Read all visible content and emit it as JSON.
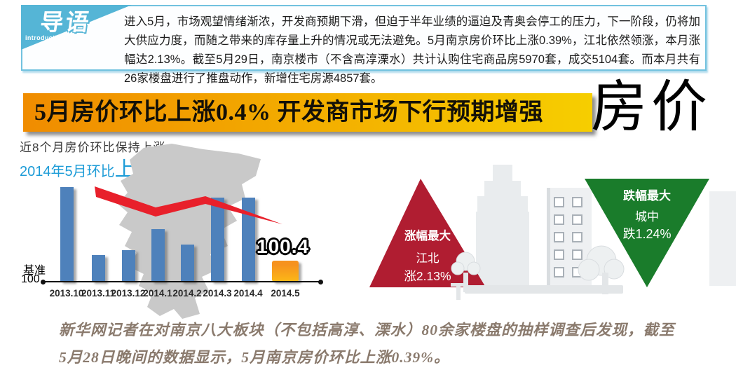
{
  "intro": {
    "logo_title": "导语",
    "logo_subtitle": "introduction",
    "text": "进入5月，市场观望情绪渐浓，开发商预期下滑，但迫于半年业绩的逼迫及青奥会停工的压力，下一阶段，仍将加大供应力度，而随之带来的库存量上升的情况或无法避免。5月南京房价环比上涨0.39%，江北依然领涨，本月涨幅达2.13%。截至5月29日，南京楼市（不含高淳溧水）共计认购住宅商品房5970套，成交5104套。而本月共有26家楼盘进行了推盘动作，新增住宅房源4857套。"
  },
  "headline": {
    "banner": "5月房价环比上涨0.4% 开发商市场下行预期增强",
    "side_label": "房价"
  },
  "chart": {
    "caption": "近8个月房价环比保持上涨",
    "subcaption_prefix": "2014年5月环比",
    "subcaption_highlight": "上涨0.4%",
    "baseline_label_1": "基准",
    "baseline_label_2": "100",
    "annotation": "100.4"
  },
  "chart_data": {
    "type": "bar",
    "title": "近8个月房价环比保持上涨",
    "categories": [
      "2013.10",
      "2013.11",
      "2013.12",
      "2014.1",
      "2014.2",
      "2014.3",
      "2014.4",
      "2014.5"
    ],
    "values": [
      101.8,
      100.5,
      100.6,
      101.0,
      100.7,
      101.6,
      101.6,
      100.4
    ],
    "baseline": 100,
    "labeled_points": {
      "2014.5": "100.4"
    },
    "highlight_category": "2014.5",
    "bar_color": "#4e81bb",
    "highlight_color": "#f6921e",
    "trend_line": {
      "color": "#e8202b",
      "direction": "declining"
    },
    "legend_position": "none",
    "grid": false
  },
  "badges": {
    "up": {
      "title": "涨幅最大",
      "region": "江北",
      "value": "涨2.13%",
      "color": "#b01d31"
    },
    "down": {
      "title": "跌幅最大",
      "region": "城中",
      "value": "跌1.24%",
      "color": "#1a7c2b"
    }
  },
  "footer": {
    "line1": "新华网记者在对南京八大板块（不包括高淳、溧水）80余家楼盘的抽样调查后发现，截至",
    "line2": "5月28日晚间的数据显示，5月南京房价环比上涨0.39%。"
  },
  "colors": {
    "intro_border": "#72c2df",
    "flag_blue": "#55b5d6",
    "banner_gradient_left": "#f08c00",
    "banner_gradient_right": "#f6ce00",
    "subcaption_blue": "#1e9cd7",
    "map_gray": "#c9c9c9",
    "footer_brown": "#8a7a6d"
  }
}
